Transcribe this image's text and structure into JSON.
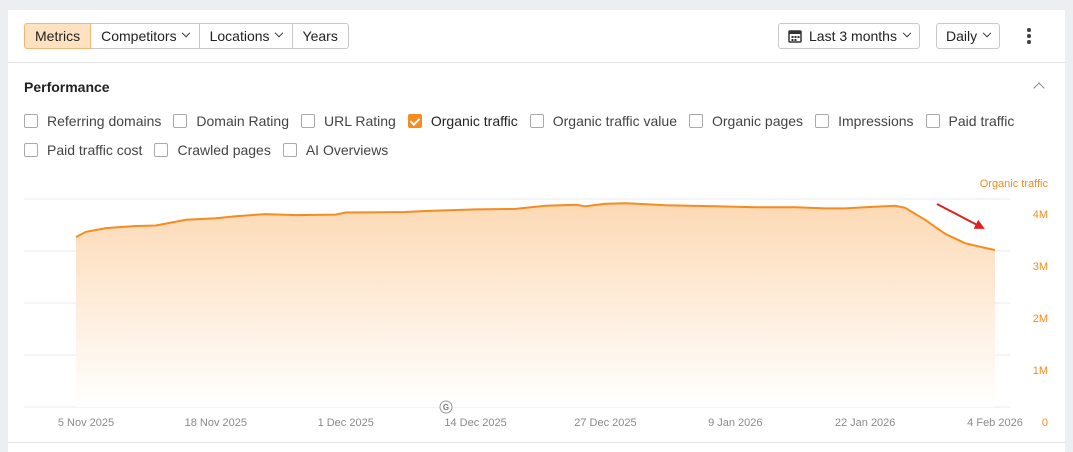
{
  "toolbar": {
    "tabs": [
      {
        "label": "Metrics",
        "selected": true
      },
      {
        "label": "Competitors",
        "dropdown": true
      },
      {
        "label": "Locations",
        "dropdown": true
      },
      {
        "label": "Years"
      }
    ],
    "date_range": "Last 3 months",
    "granularity": "Daily"
  },
  "section": {
    "title": "Performance",
    "metrics": [
      {
        "label": "Referring domains",
        "checked": false
      },
      {
        "label": "Domain Rating",
        "checked": false
      },
      {
        "label": "URL Rating",
        "checked": false
      },
      {
        "label": "Organic traffic",
        "checked": true
      },
      {
        "label": "Organic traffic value",
        "checked": false
      },
      {
        "label": "Organic pages",
        "checked": false
      },
      {
        "label": "Impressions",
        "checked": false
      },
      {
        "label": "Paid traffic",
        "checked": false
      },
      {
        "label": "Paid traffic cost",
        "checked": false
      },
      {
        "label": "Crawled pages",
        "checked": false
      },
      {
        "label": "AI Overviews",
        "checked": false
      }
    ]
  },
  "chart_data": {
    "type": "area",
    "x": [
      "4 Nov 2025",
      "5 Nov 2025",
      "7 Nov 2025",
      "10 Nov 2025",
      "12 Nov 2025",
      "15 Nov 2025",
      "18 Nov 2025",
      "20 Nov 2025",
      "23 Nov 2025",
      "26 Nov 2025",
      "30 Nov 2025",
      "1 Dec 2025",
      "7 Dec 2025",
      "9 Dec 2025",
      "14 Dec 2025",
      "18 Dec 2025",
      "21 Dec 2025",
      "24 Dec 2025",
      "25 Dec 2025",
      "27 Dec 2025",
      "29 Dec 2025",
      "2 Jan 2026",
      "7 Jan 2026",
      "11 Jan 2026",
      "15 Jan 2026",
      "18 Jan 2026",
      "20 Jan 2026",
      "22 Jan 2026",
      "25 Jan 2026",
      "26 Jan 2026",
      "28 Jan 2026",
      "30 Jan 2026",
      "1 Feb 2026",
      "3 Feb 2026",
      "4 Feb 2026"
    ],
    "series": [
      {
        "name": "Organic traffic",
        "color": "#f68b1f",
        "values": [
          3270000,
          3370000,
          3440000,
          3480000,
          3490000,
          3600000,
          3630000,
          3670000,
          3710000,
          3690000,
          3700000,
          3740000,
          3750000,
          3770000,
          3800000,
          3810000,
          3870000,
          3890000,
          3860000,
          3910000,
          3920000,
          3880000,
          3860000,
          3840000,
          3840000,
          3820000,
          3820000,
          3840000,
          3870000,
          3830000,
          3600000,
          3330000,
          3150000,
          3060000,
          3020000
        ]
      }
    ],
    "xticks": [
      "5 Nov 2025",
      "18 Nov 2025",
      "1 Dec 2025",
      "14 Dec 2025",
      "27 Dec 2025",
      "9 Jan 2026",
      "22 Jan 2026",
      "4 Feb 2026"
    ],
    "ylim": [
      0,
      4000000
    ],
    "yticks": [
      0,
      {
        "value": 1000000,
        "label": "1M"
      },
      {
        "value": 2000000,
        "label": "2M"
      },
      {
        "value": 3000000,
        "label": "3M"
      },
      {
        "value": 4000000,
        "label": "4M"
      }
    ],
    "y_axis_side": "right",
    "grid": true
  }
}
